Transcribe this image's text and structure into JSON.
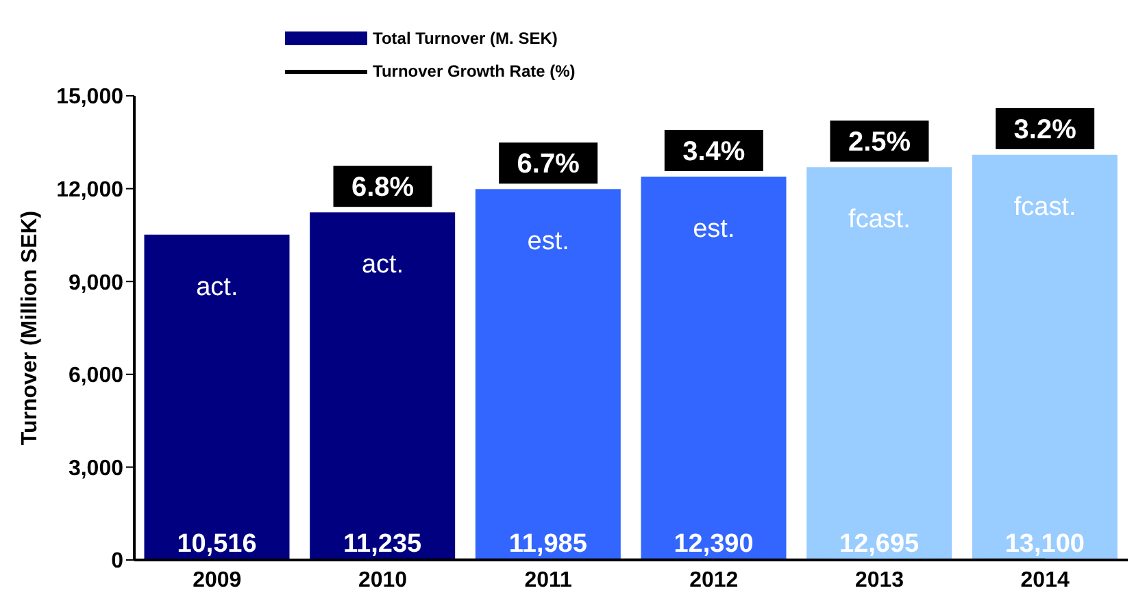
{
  "chart_data": {
    "type": "bar",
    "ylabel": "Turnover (Million SEK)",
    "categories": [
      "2009",
      "2010",
      "2011",
      "2012",
      "2013",
      "2014"
    ],
    "series": [
      {
        "name": "Total Turnover (M. SEK)",
        "color": "#000080",
        "colors": [
          "#000080",
          "#000080",
          "#3366ff",
          "#3366ff",
          "#99ccff",
          "#99ccff"
        ],
        "values": [
          10516,
          11235,
          11985,
          12390,
          12695,
          13100
        ],
        "value_labels": [
          "10,516",
          "11,235",
          "11,985",
          "12,390",
          "12,695",
          "13,100"
        ]
      },
      {
        "name": "Turnover Growth Rate (%)",
        "type": "line",
        "color": "#000000",
        "values": [
          null,
          6.8,
          6.7,
          3.4,
          2.5,
          3.2
        ]
      }
    ],
    "ylim": [
      0,
      15000
    ],
    "yticks": [
      0,
      {
        "value": 3000,
        "label": "3,000"
      },
      {
        "value": 6000,
        "label": "6,000"
      },
      {
        "value": 9000,
        "label": "9,000"
      },
      {
        "value": 12000,
        "label": "12,000"
      },
      {
        "value": 15000,
        "label": "15,000"
      }
    ],
    "grid": false,
    "legend": "top",
    "annotations": [
      {
        "text": "6.8%",
        "x": "2010",
        "y": 11235
      },
      {
        "text": "6.7%",
        "x": "2011",
        "y": 11985
      },
      {
        "text": "3.4%",
        "x": "2012",
        "y": 12390
      },
      {
        "text": "2.5%",
        "x": "2013",
        "y": 12695
      },
      {
        "text": "3.2%",
        "x": "2014",
        "y": 13100
      },
      "act.",
      "act.",
      "est.",
      "est.",
      "fcast.",
      "fcast."
    ]
  }
}
